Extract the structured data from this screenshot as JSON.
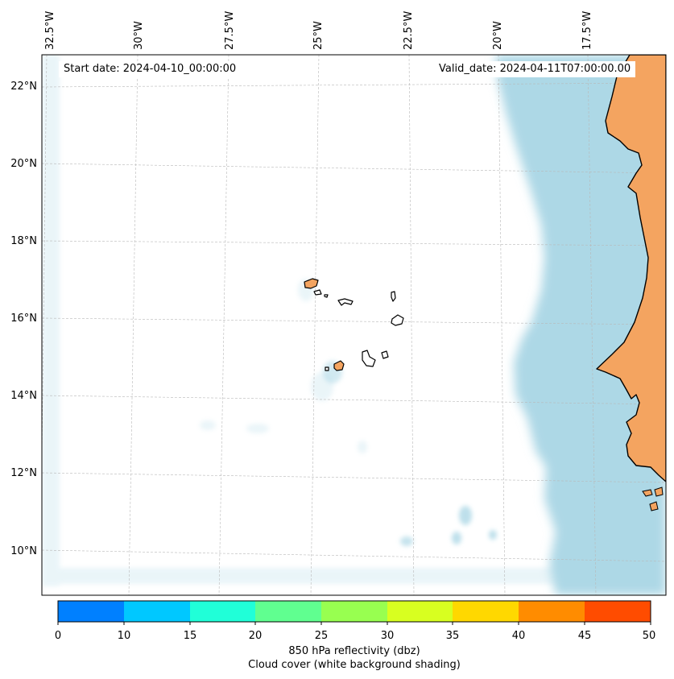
{
  "map": {
    "start_date": "Start date: 2024-04-10_00:00:00",
    "valid_date": "Valid_date: 2024-04-11T07:00:00.00",
    "lon_labels": [
      "32.5°W",
      "30°W",
      "27.5°W",
      "25°W",
      "22.5°W",
      "20°W",
      "17.5°W"
    ],
    "lat_labels": [
      "22°N",
      "20°N",
      "18°N",
      "16°N",
      "14°N",
      "12°N",
      "10°N"
    ],
    "region": "Cabo Verde and West African coast",
    "colors": {
      "land": "#f4a460",
      "cloud": "#add8e6",
      "ocean": "#ffffff",
      "coastline": "#000000"
    }
  },
  "colorbar": {
    "ticks": [
      "0",
      "10",
      "15",
      "20",
      "25",
      "30",
      "35",
      "40",
      "45",
      "50"
    ],
    "colors": [
      "#0080ff",
      "#00c8ff",
      "#20ffd8",
      "#60ff90",
      "#98ff50",
      "#d8ff20",
      "#ffd800",
      "#ff8c00",
      "#ff4c00"
    ],
    "label": "850 hPa reflectivity (dbz)",
    "sublabel": "Cloud cover (white background shading)"
  }
}
